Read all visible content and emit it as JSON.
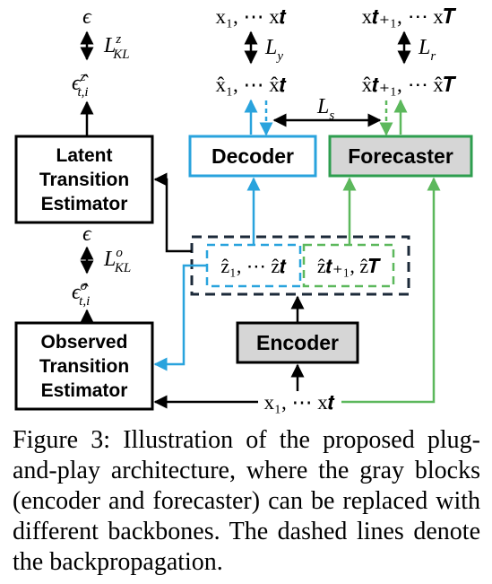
{
  "blocks": {
    "latent_line1": "Latent",
    "latent_line2": "Transition",
    "latent_line3": "Estimator",
    "observed_line1": "Observed",
    "observed_line2": "Transition",
    "observed_line3": "Estimator",
    "decoder": "Decoder",
    "forecaster": "Forecaster",
    "encoder": "Encoder"
  },
  "symbols": {
    "eps_top": "ϵ",
    "eps_hat_z_base": "ϵ̂",
    "eps_hat_z_sup": "z",
    "eps_hat_z_sub": "t,i",
    "loss_kl_z_L": "L",
    "loss_kl_z_sup": "z",
    "loss_kl_z_sub": "KL",
    "eps_mid": "ϵ",
    "eps_hat_o_base": "ϵ̂",
    "eps_hat_o_sup": "o",
    "eps_hat_o_sub": "t,i",
    "loss_kl_o_L": "L",
    "loss_kl_o_sup": "o",
    "loss_kl_o_sub": "KL",
    "x_obs": "x₁, ⋯ x𝒕",
    "x_future": "x𝒕₊₁, ⋯ x𝑻",
    "loss_y_L": "L",
    "loss_y_sub": "y",
    "loss_r_L": "L",
    "loss_r_sub": "r",
    "xhat_obs": "x̂₁, ⋯ x̂𝒕",
    "xhat_future": "x̂𝒕₊₁, ⋯ x̂𝑻",
    "loss_s_L": "L",
    "loss_s_sub": "s",
    "z_obs": "ẑ₁, ⋯ ẑ𝒕",
    "z_future": "ẑ𝒕₊₁, ẑ𝑻",
    "x_input": "x₁, ⋯ x𝒕"
  },
  "caption": "Figure 3:  Illustration of the proposed plug-and-play architecture, where the gray blocks (encoder and forecaster) can be replaced with different backbones.  The dashed lines denote the backpropagation.",
  "colors": {
    "blue": "#29a3dd",
    "green": "#5cb85c",
    "green_border": "#2e9e4f",
    "gray_fill": "#d6d6d6",
    "dark_navy": "#1c2a3a",
    "black": "#000000"
  }
}
